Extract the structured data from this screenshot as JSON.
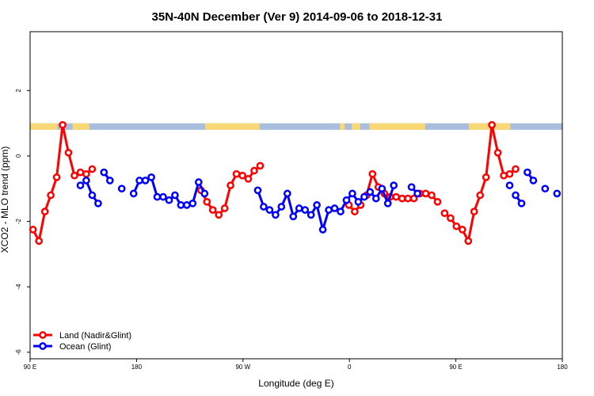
{
  "chart_data": {
    "type": "line",
    "title": "35N-40N December (Ver 9)   2014-09-06 to 2018-12-31",
    "xlabel": "Longitude (deg E)",
    "ylabel": "XCO2 - MLO trend (ppm)",
    "xlim": [
      90,
      540
    ],
    "ylim": [
      -6.2,
      3.8
    ],
    "xticks": [
      {
        "value": 90,
        "label": "90 E"
      },
      {
        "value": 180,
        "label": "180"
      },
      {
        "value": 270,
        "label": "90 W"
      },
      {
        "value": 360,
        "label": "0"
      },
      {
        "value": 450,
        "label": "90 E"
      },
      {
        "value": 540,
        "label": "180"
      }
    ],
    "yticks": [
      {
        "value": 2,
        "label": "2"
      },
      {
        "value": 0,
        "label": "0"
      },
      {
        "value": -2,
        "label": "-2"
      },
      {
        "value": -4,
        "label": "-4"
      },
      {
        "value": -6,
        "label": "-6"
      }
    ],
    "legend_position": "bottom-left",
    "land_ocean_bar": {
      "y_range": [
        0.8,
        1.0
      ],
      "land_color": "#f9d977",
      "ocean_color": "#a8bedc",
      "land_segments": [
        [
          90,
          113
        ],
        [
          126,
          140
        ],
        [
          238,
          284
        ],
        [
          352,
          356
        ],
        [
          362,
          369
        ],
        [
          377,
          424
        ],
        [
          461,
          496
        ]
      ]
    },
    "series": [
      {
        "name": "Land (Nadir&Glint)",
        "color": "#ff0000",
        "segments": [
          [
            [
              92.5,
              -2.25
            ],
            [
              97.5,
              -2.6
            ],
            [
              102.5,
              -1.7
            ],
            [
              107.5,
              -1.2
            ],
            [
              112.5,
              -0.65
            ],
            [
              117.5,
              0.95
            ],
            [
              122.5,
              0.1
            ],
            [
              127.5,
              -0.6
            ],
            [
              132.5,
              -0.5
            ]
          ],
          [
            [
              137.5,
              -0.55
            ],
            [
              142.5,
              -0.4
            ]
          ],
          [
            [
              234.5,
              -1.05
            ],
            [
              239.5,
              -1.4
            ],
            [
              244.5,
              -1.65
            ],
            [
              249.5,
              -1.8
            ],
            [
              254.5,
              -1.6
            ],
            [
              259.5,
              -0.9
            ],
            [
              264.5,
              -0.55
            ],
            [
              269.5,
              -0.6
            ],
            [
              274.5,
              -0.7
            ],
            [
              279.5,
              -0.45
            ],
            [
              284.5,
              -0.3
            ]
          ],
          [
            [
              359.5,
              -1.5
            ],
            [
              364.5,
              -1.7
            ],
            [
              369.5,
              -1.5
            ]
          ],
          [
            [
              374.5,
              -1.2
            ],
            [
              379.5,
              -0.55
            ],
            [
              384.5,
              -0.95
            ],
            [
              389.5,
              -1.15
            ],
            [
              394.5,
              -1.25
            ],
            [
              399.5,
              -1.25
            ],
            [
              404.5,
              -1.3
            ],
            [
              409.5,
              -1.3
            ],
            [
              414.5,
              -1.3
            ],
            [
              419.5,
              -1.15
            ],
            [
              424.5,
              -1.15
            ],
            [
              429.5,
              -1.2
            ],
            [
              434.5,
              -1.4
            ]
          ],
          [
            [
              440.5,
              -1.75
            ],
            [
              445.5,
              -1.9
            ],
            [
              450.5,
              -2.15
            ],
            [
              455.5,
              -2.25
            ],
            [
              460.5,
              -2.6
            ],
            [
              465.5,
              -1.7
            ],
            [
              470.5,
              -1.2
            ],
            [
              475.5,
              -0.65
            ],
            [
              480.5,
              0.95
            ],
            [
              485.5,
              0.1
            ],
            [
              490.5,
              -0.6
            ]
          ],
          [
            [
              495.5,
              -0.55
            ],
            [
              500.5,
              -0.4
            ]
          ]
        ]
      },
      {
        "name": "Ocean (Glint)",
        "color": "#0000ff",
        "segments": [
          [
            [
              132.5,
              -0.9
            ]
          ],
          [
            [
              137.5,
              -0.75
            ],
            [
              142.5,
              -1.2
            ],
            [
              147.5,
              -1.45
            ]
          ],
          [
            [
              152.5,
              -0.5
            ],
            [
              157.5,
              -0.75
            ]
          ],
          [
            [
              167.5,
              -1.0
            ]
          ],
          [
            [
              177.5,
              -1.15
            ],
            [
              182.5,
              -0.75
            ],
            [
              187.5,
              -0.75
            ],
            [
              192.5,
              -0.65
            ],
            [
              197.5,
              -1.25
            ],
            [
              202.5,
              -1.25
            ],
            [
              207.5,
              -1.35
            ],
            [
              212.5,
              -1.2
            ],
            [
              217.5,
              -1.5
            ],
            [
              222.5,
              -1.5
            ],
            [
              227.5,
              -1.45
            ],
            [
              232.5,
              -0.8
            ],
            [
              237.5,
              -1.15
            ]
          ],
          [
            [
              282.5,
              -1.05
            ],
            [
              287.5,
              -1.55
            ],
            [
              292.5,
              -1.65
            ],
            [
              297.5,
              -1.8
            ],
            [
              302.5,
              -1.55
            ],
            [
              307.5,
              -1.15
            ],
            [
              312.5,
              -1.85
            ],
            [
              317.5,
              -1.6
            ],
            [
              322.5,
              -1.65
            ],
            [
              327.5,
              -1.8
            ],
            [
              332.5,
              -1.5
            ],
            [
              337.5,
              -2.25
            ],
            [
              342.5,
              -1.65
            ],
            [
              347.5,
              -1.6
            ],
            [
              352.5,
              -1.7
            ],
            [
              357.5,
              -1.35
            ],
            [
              362.5,
              -1.15
            ],
            [
              367.5,
              -1.4
            ],
            [
              372.5,
              -1.25
            ],
            [
              377.5,
              -1.1
            ],
            [
              382.5,
              -1.3
            ],
            [
              387.5,
              -1.0
            ],
            [
              392.5,
              -1.45
            ],
            [
              397.5,
              -0.9
            ]
          ],
          [
            [
              412.5,
              -0.95
            ],
            [
              417.5,
              -1.15
            ]
          ],
          [
            [
              495.5,
              -0.9
            ]
          ],
          [
            [
              500.5,
              -1.2
            ],
            [
              505.5,
              -1.45
            ]
          ],
          [
            [
              510.5,
              -0.5
            ],
            [
              515.5,
              -0.75
            ]
          ],
          [
            [
              525.5,
              -1.0
            ]
          ],
          [
            [
              535.5,
              -1.15
            ]
          ]
        ]
      }
    ]
  }
}
